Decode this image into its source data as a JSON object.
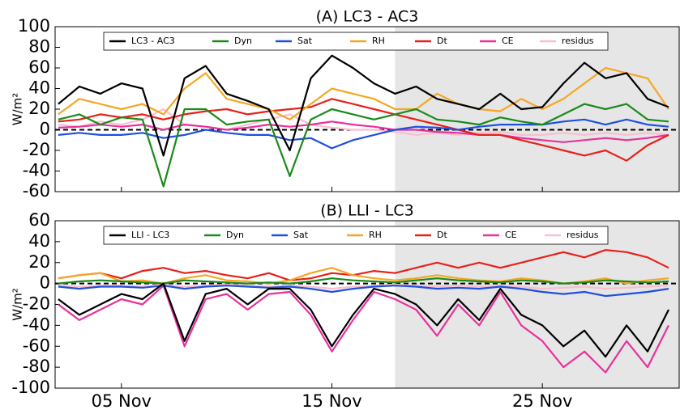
{
  "chart_data": [
    {
      "type": "line",
      "title": "(A) LC3 - AC3",
      "ylabel": "W/m²",
      "x": [
        2,
        3,
        4,
        5,
        6,
        7,
        8,
        9,
        10,
        11,
        12,
        13,
        14,
        15,
        16,
        17,
        18,
        19,
        20,
        21,
        22,
        23,
        24,
        25,
        26,
        27,
        28,
        29,
        30,
        31
      ],
      "xlim": [
        1.85,
        31.5
      ],
      "ylim": [
        -60,
        100
      ],
      "yticks": [
        -60,
        -40,
        -20,
        0,
        20,
        40,
        60,
        80,
        100
      ],
      "shaded_xlim": [
        18,
        31.5
      ],
      "zero_line": true,
      "legend": "top",
      "series": [
        {
          "name": "LC3 - AC3",
          "color": "#000000",
          "values": [
            25,
            42,
            35,
            45,
            40,
            -25,
            50,
            62,
            35,
            28,
            20,
            -20,
            50,
            72,
            60,
            45,
            35,
            42,
            30,
            25,
            20,
            35,
            20,
            22,
            45,
            65,
            50,
            55,
            30,
            22
          ]
        },
        {
          "name": "Dyn",
          "color": "#1a8a1a",
          "values": [
            10,
            15,
            5,
            12,
            10,
            -55,
            20,
            20,
            5,
            8,
            10,
            -45,
            10,
            20,
            15,
            10,
            15,
            20,
            10,
            8,
            5,
            12,
            8,
            5,
            15,
            25,
            20,
            25,
            10,
            8
          ]
        },
        {
          "name": "Sat",
          "color": "#1f4fe0",
          "values": [
            -5,
            -3,
            -5,
            -5,
            -3,
            -8,
            -5,
            0,
            -3,
            -5,
            -5,
            -10,
            -8,
            -18,
            -10,
            -5,
            0,
            3,
            2,
            0,
            3,
            5,
            5,
            5,
            8,
            10,
            5,
            10,
            5,
            3
          ]
        },
        {
          "name": "RH",
          "color": "#f5a623",
          "values": [
            15,
            30,
            25,
            20,
            25,
            15,
            40,
            55,
            30,
            25,
            20,
            10,
            25,
            40,
            35,
            30,
            20,
            20,
            35,
            25,
            20,
            18,
            30,
            20,
            30,
            45,
            60,
            55,
            50,
            20
          ]
        },
        {
          "name": "Dt",
          "color": "#e8201a",
          "values": [
            8,
            10,
            15,
            12,
            15,
            10,
            15,
            18,
            20,
            15,
            18,
            20,
            22,
            30,
            25,
            20,
            15,
            10,
            5,
            0,
            -5,
            -5,
            -10,
            -15,
            -20,
            -25,
            -20,
            -30,
            -15,
            -5
          ]
        },
        {
          "name": "CE",
          "color": "#e8319c",
          "values": [
            2,
            3,
            5,
            3,
            5,
            0,
            5,
            3,
            0,
            2,
            5,
            3,
            5,
            8,
            5,
            3,
            0,
            0,
            -2,
            -3,
            -5,
            -5,
            -8,
            -10,
            -12,
            -10,
            -8,
            -10,
            -8,
            -5
          ]
        },
        {
          "name": "residus",
          "color": "#f7bfd0",
          "values": [
            5,
            3,
            8,
            5,
            10,
            20,
            5,
            3,
            0,
            5,
            10,
            15,
            5,
            2,
            0,
            0,
            -2,
            -5,
            -3,
            -5,
            -3,
            -2,
            -5,
            -5,
            -3,
            -5,
            -3,
            -5,
            -3,
            -5
          ]
        }
      ]
    },
    {
      "type": "line",
      "title": "(B) LLI - LC3",
      "ylabel": "W/m²",
      "x": [
        2,
        3,
        4,
        5,
        6,
        7,
        8,
        9,
        10,
        11,
        12,
        13,
        14,
        15,
        16,
        17,
        18,
        19,
        20,
        21,
        22,
        23,
        24,
        25,
        26,
        27,
        28,
        29,
        30,
        31
      ],
      "xlim": [
        1.85,
        31.5
      ],
      "ylim": [
        -100,
        60
      ],
      "yticks": [
        -100,
        -80,
        -60,
        -40,
        -20,
        0,
        20,
        40,
        60
      ],
      "xticks": [
        {
          "value": 5,
          "label": "05 Nov"
        },
        {
          "value": 15,
          "label": "15 Nov"
        },
        {
          "value": 25,
          "label": "25 Nov"
        }
      ],
      "shaded_xlim": [
        18,
        31.5
      ],
      "zero_line": true,
      "legend": "top",
      "series": [
        {
          "name": "LLI - LC3",
          "color": "#000000",
          "values": [
            -15,
            -30,
            -20,
            -10,
            -15,
            0,
            -55,
            -10,
            -5,
            -20,
            -5,
            -5,
            -25,
            -60,
            -30,
            -5,
            -10,
            -20,
            -40,
            -15,
            -35,
            -5,
            -30,
            -40,
            -60,
            -45,
            -70,
            -40,
            -65,
            -25
          ]
        },
        {
          "name": "Dyn",
          "color": "#1a8a1a",
          "values": [
            0,
            2,
            3,
            2,
            1,
            0,
            3,
            2,
            1,
            0,
            1,
            0,
            2,
            5,
            3,
            2,
            1,
            3,
            5,
            3,
            2,
            1,
            3,
            2,
            0,
            1,
            3,
            2,
            1,
            2
          ]
        },
        {
          "name": "Sat",
          "color": "#1f4fe0",
          "values": [
            -3,
            -5,
            -3,
            -3,
            -4,
            -2,
            -5,
            -3,
            -2,
            -3,
            -4,
            -3,
            -5,
            -8,
            -5,
            -3,
            -2,
            -3,
            -5,
            -4,
            -5,
            -3,
            -5,
            -8,
            -10,
            -8,
            -12,
            -10,
            -8,
            -5
          ]
        },
        {
          "name": "RH",
          "color": "#f5a623",
          "values": [
            5,
            8,
            10,
            2,
            3,
            0,
            5,
            8,
            3,
            2,
            0,
            3,
            10,
            15,
            8,
            5,
            3,
            5,
            8,
            5,
            3,
            2,
            5,
            3,
            0,
            2,
            5,
            0,
            3,
            5
          ]
        },
        {
          "name": "Dt",
          "color": "#e8201a",
          "values": [
            5,
            8,
            10,
            5,
            12,
            15,
            10,
            12,
            8,
            5,
            10,
            3,
            5,
            10,
            8,
            12,
            10,
            15,
            20,
            15,
            20,
            15,
            20,
            25,
            30,
            25,
            32,
            30,
            25,
            15
          ]
        },
        {
          "name": "CE",
          "color": "#e8319c",
          "values": [
            -20,
            -35,
            -25,
            -15,
            -20,
            -2,
            -60,
            -15,
            -10,
            -25,
            -10,
            -8,
            -30,
            -65,
            -35,
            -8,
            -15,
            -25,
            -50,
            -20,
            -40,
            -8,
            -40,
            -55,
            -80,
            -65,
            -85,
            -55,
            -80,
            -40
          ]
        },
        {
          "name": "residus",
          "color": "#f7bfd0",
          "values": [
            -2,
            -3,
            -2,
            -2,
            -3,
            -1,
            -3,
            -2,
            -1,
            -2,
            -3,
            -2,
            -3,
            -5,
            -3,
            -2,
            -1,
            -2,
            -3,
            -2,
            -3,
            -2,
            -3,
            -5,
            -4,
            -3,
            -5,
            -4,
            -3,
            -2
          ]
        }
      ]
    }
  ]
}
